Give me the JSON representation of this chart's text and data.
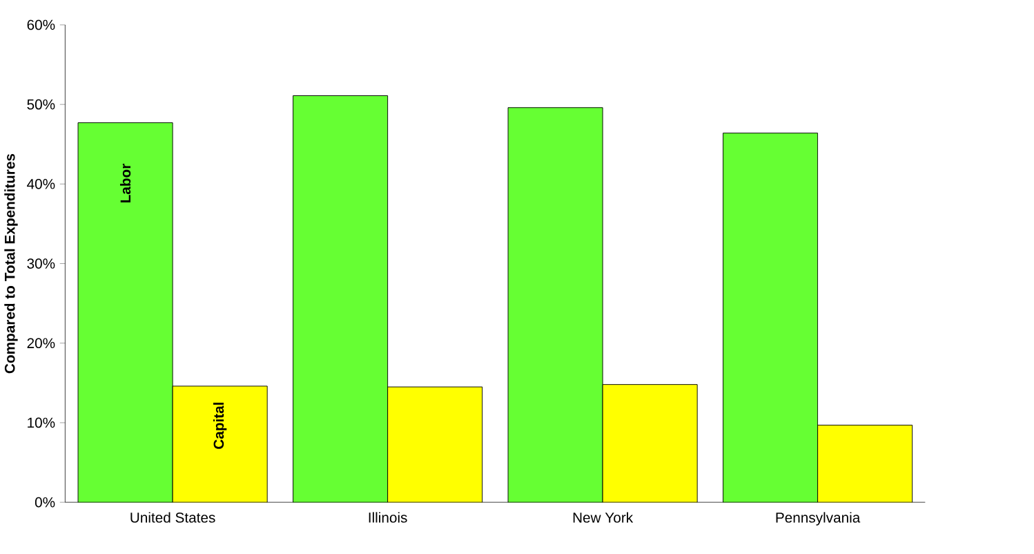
{
  "chart_data": {
    "type": "bar",
    "ylabel": "Compared to Total Expenditures",
    "categories": [
      "United States",
      "Illinois",
      "New York",
      "Pennsylvania"
    ],
    "series": [
      {
        "name": "Labor",
        "color": "#66ff33",
        "values": [
          47.7,
          51.1,
          49.6,
          46.4
        ]
      },
      {
        "name": "Capital",
        "color": "#ffff00",
        "values": [
          14.6,
          14.5,
          14.8,
          9.7
        ]
      }
    ],
    "ylim": [
      0,
      60
    ],
    "yticks": [
      {
        "value": 0,
        "label": "0%"
      },
      {
        "value": 10,
        "label": "10%"
      },
      {
        "value": 20,
        "label": "20%"
      },
      {
        "value": 30,
        "label": "30%"
      },
      {
        "value": 40,
        "label": "40%"
      },
      {
        "value": 50,
        "label": "50%"
      },
      {
        "value": 60,
        "label": "60%"
      }
    ],
    "legend": false
  }
}
